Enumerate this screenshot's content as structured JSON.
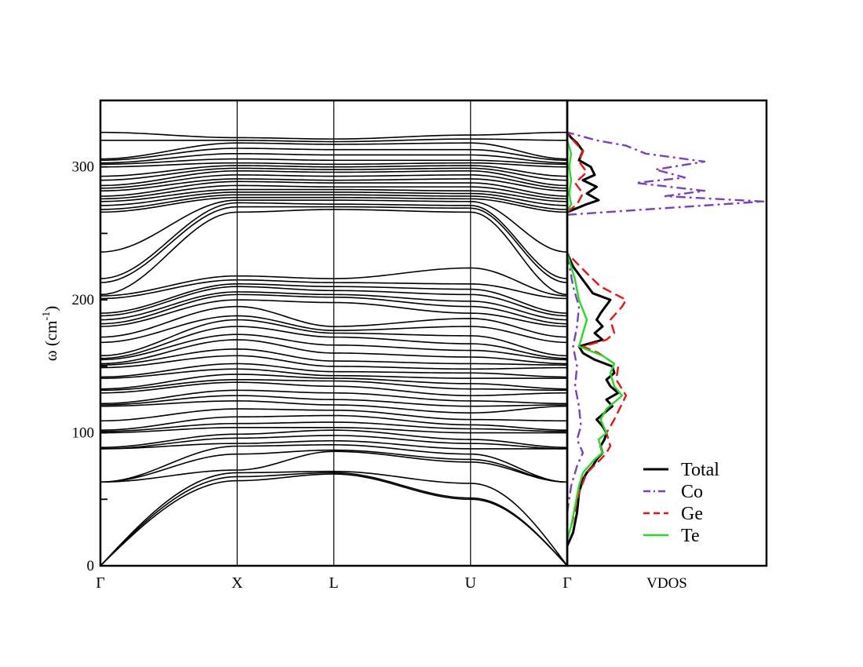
{
  "chart_data": [
    {
      "type": "line",
      "title": "",
      "xlabel": "",
      "ylabel": "ω (cm⁻¹)",
      "ylabel_main": "ω  (cm",
      "ylabel_sup": "-1",
      "ylabel_close": ")",
      "ylim": [
        0,
        350
      ],
      "grid": false,
      "x_ticks": [
        "Γ",
        "X",
        "L",
        "U",
        "Γ"
      ],
      "x_tick_positions": [
        0.0,
        1.0,
        1.707,
        2.707,
        3.414
      ],
      "y_ticks": [
        0,
        50,
        100,
        150,
        200,
        250,
        300
      ],
      "y_tick_labels": [
        "0",
        "",
        "100",
        "",
        "200",
        "",
        "300"
      ],
      "series_description": "phonon dispersion branches (black lines)",
      "branch_energies_at_gamma": [
        0,
        0,
        0,
        63,
        63,
        63,
        88,
        88,
        89,
        100,
        101,
        102,
        109,
        120,
        121,
        122,
        130,
        132,
        133,
        141,
        142,
        149,
        151,
        152,
        155,
        156,
        158,
        168,
        172,
        180,
        182,
        185,
        188,
        190,
        201,
        203,
        204,
        213,
        216,
        236,
        266,
        268,
        271,
        274,
        276,
        278,
        282,
        284,
        286,
        290,
        293,
        300,
        302,
        303,
        305,
        306,
        320,
        326
      ],
      "branch_energies_at_X": [
        64,
        67,
        70,
        72,
        84,
        90,
        92,
        96,
        99,
        104,
        107,
        112,
        118,
        124,
        128,
        132,
        138,
        140,
        144,
        148,
        152,
        158,
        163,
        170,
        174,
        180,
        185,
        188,
        195,
        200,
        204,
        206,
        210,
        212,
        215,
        218,
        266,
        270,
        273,
        275,
        277,
        279,
        281,
        283,
        286,
        289,
        291,
        294,
        297,
        299,
        301,
        303,
        306,
        310,
        314,
        318,
        320,
        322
      ],
      "branch_energies_at_L": [
        69,
        70,
        71,
        86,
        87,
        91,
        94,
        98,
        102,
        104,
        108,
        113,
        117,
        121,
        125,
        130,
        135,
        139,
        141,
        143,
        146,
        150,
        154,
        160,
        166,
        172,
        175,
        177,
        180,
        198,
        202,
        204,
        207,
        210,
        213,
        216,
        268,
        270,
        272,
        275,
        277,
        279,
        281,
        283,
        285,
        288,
        290,
        293,
        296,
        298,
        300,
        302,
        305,
        309,
        313,
        317,
        319,
        321
      ],
      "branch_energies_at_U": [
        50,
        51,
        62,
        78,
        80,
        84,
        88,
        92,
        95,
        100,
        103,
        106,
        110,
        115,
        120,
        124,
        128,
        133,
        137,
        141,
        145,
        148,
        152,
        157,
        162,
        167,
        173,
        180,
        186,
        190,
        195,
        199,
        204,
        208,
        212,
        224,
        266,
        269,
        271,
        274,
        276,
        278,
        280,
        282,
        285,
        288,
        291,
        294,
        297,
        299,
        301,
        303,
        305,
        309,
        313,
        318,
        321,
        324
      ]
    },
    {
      "type": "line",
      "title": "",
      "xlabel": "VDOS",
      "ylim": [
        0,
        350
      ],
      "legend_position": "bottom-right",
      "series": [
        {
          "name": "Total",
          "color": "#000000",
          "style": "solid",
          "points": [
            [
              0,
              15
            ],
            [
              0.03,
              25
            ],
            [
              0.05,
              40
            ],
            [
              0.06,
              55
            ],
            [
              0.08,
              65
            ],
            [
              0.1,
              70
            ],
            [
              0.13,
              75
            ],
            [
              0.15,
              80
            ],
            [
              0.18,
              85
            ],
            [
              0.17,
              90
            ],
            [
              0.19,
              95
            ],
            [
              0.2,
              100
            ],
            [
              0.18,
              105
            ],
            [
              0.15,
              110
            ],
            [
              0.19,
              115
            ],
            [
              0.23,
              120
            ],
            [
              0.2,
              125
            ],
            [
              0.26,
              130
            ],
            [
              0.22,
              135
            ],
            [
              0.2,
              140
            ],
            [
              0.24,
              145
            ],
            [
              0.23,
              150
            ],
            [
              0.14,
              155
            ],
            [
              0.08,
              160
            ],
            [
              0.06,
              165
            ],
            [
              0.18,
              170
            ],
            [
              0.14,
              175
            ],
            [
              0.18,
              180
            ],
            [
              0.15,
              185
            ],
            [
              0.17,
              190
            ],
            [
              0.22,
              200
            ],
            [
              0.13,
              205
            ],
            [
              0.08,
              215
            ],
            [
              0.03,
              225
            ],
            [
              0.0,
              235
            ]
          ]
        },
        {
          "name": "Co",
          "color": "#7b3fc4",
          "style": "dash-dot",
          "points": [
            [
              0,
              40
            ],
            [
              0.02,
              60
            ],
            [
              0.05,
              75
            ],
            [
              0.08,
              85
            ],
            [
              0.05,
              95
            ],
            [
              0.07,
              105
            ],
            [
              0.06,
              120
            ],
            [
              0.04,
              135
            ],
            [
              0.05,
              150
            ],
            [
              0.03,
              165
            ],
            [
              0.05,
              180
            ],
            [
              0.06,
              195
            ],
            [
              0.03,
              210
            ],
            [
              0.0,
              235
            ]
          ]
        },
        {
          "name": "Ge",
          "color": "#ee1111",
          "style": "dashed",
          "points": [
            [
              0,
              20
            ],
            [
              0.03,
              35
            ],
            [
              0.06,
              55
            ],
            [
              0.1,
              70
            ],
            [
              0.17,
              80
            ],
            [
              0.2,
              85
            ],
            [
              0.22,
              90
            ],
            [
              0.2,
              100
            ],
            [
              0.24,
              110
            ],
            [
              0.3,
              128
            ],
            [
              0.25,
              140
            ],
            [
              0.26,
              150
            ],
            [
              0.16,
              160
            ],
            [
              0.08,
              165
            ],
            [
              0.2,
              170
            ],
            [
              0.24,
              175
            ],
            [
              0.22,
              185
            ],
            [
              0.28,
              195
            ],
            [
              0.3,
              200
            ],
            [
              0.17,
              210
            ],
            [
              0.1,
              220
            ],
            [
              0.0,
              235
            ]
          ]
        },
        {
          "name": "Te",
          "color": "#22dd22",
          "style": "solid",
          "points": [
            [
              0,
              20
            ],
            [
              0.02,
              30
            ],
            [
              0.04,
              45
            ],
            [
              0.06,
              60
            ],
            [
              0.08,
              70
            ],
            [
              0.14,
              80
            ],
            [
              0.18,
              85
            ],
            [
              0.16,
              95
            ],
            [
              0.2,
              100
            ],
            [
              0.17,
              110
            ],
            [
              0.2,
              118
            ],
            [
              0.28,
              128
            ],
            [
              0.24,
              135
            ],
            [
              0.22,
              145
            ],
            [
              0.24,
              152
            ],
            [
              0.18,
              158
            ],
            [
              0.06,
              165
            ],
            [
              0.08,
              175
            ],
            [
              0.1,
              185
            ],
            [
              0.06,
              200
            ],
            [
              0.04,
              215
            ],
            [
              0.0,
              235
            ]
          ]
        }
      ],
      "upper_band": {
        "Total": [
          [
            0,
            266
          ],
          [
            0.1,
            272
          ],
          [
            0.16,
            275
          ],
          [
            0.1,
            280
          ],
          [
            0.15,
            285
          ],
          [
            0.08,
            290
          ],
          [
            0.14,
            294
          ],
          [
            0.12,
            300
          ],
          [
            0.06,
            305
          ],
          [
            0.08,
            312
          ],
          [
            0.05,
            318
          ],
          [
            0.02,
            322
          ],
          [
            0.0,
            326
          ]
        ],
        "Co": [
          [
            0,
            264
          ],
          [
            0.4,
            268
          ],
          [
            1.0,
            274
          ],
          [
            0.5,
            278
          ],
          [
            0.7,
            282
          ],
          [
            0.35,
            288
          ],
          [
            0.6,
            292
          ],
          [
            0.45,
            298
          ],
          [
            0.7,
            304
          ],
          [
            0.4,
            310
          ],
          [
            0.3,
            316
          ],
          [
            0.15,
            320
          ],
          [
            0.0,
            326
          ]
        ],
        "Ge": [
          [
            0,
            266
          ],
          [
            0.05,
            272
          ],
          [
            0.08,
            280
          ],
          [
            0.04,
            288
          ],
          [
            0.1,
            296
          ],
          [
            0.06,
            304
          ],
          [
            0.08,
            312
          ],
          [
            0.03,
            320
          ],
          [
            0.0,
            326
          ]
        ],
        "Te": [
          [
            0,
            266
          ],
          [
            0.02,
            272
          ],
          [
            0.01,
            280
          ],
          [
            0.02,
            290
          ],
          [
            0.01,
            300
          ],
          [
            0.02,
            310
          ],
          [
            0.0,
            320
          ]
        ]
      }
    }
  ]
}
